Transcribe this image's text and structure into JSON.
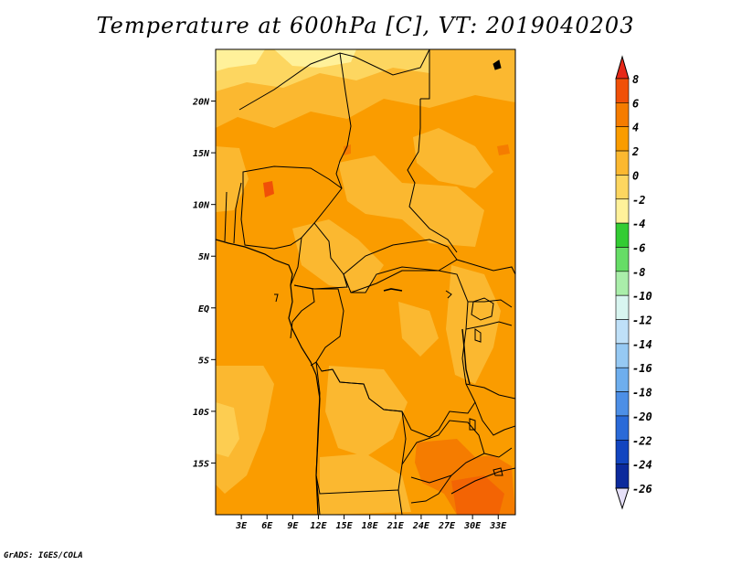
{
  "title": "Temperature at 600hPa [C], VT: 2019040203",
  "credit": "GrADS: IGES/COLA",
  "map": {
    "variable": "Temperature",
    "level": "600hPa",
    "units": "C",
    "valid_time": "2019040203",
    "region": "Central Africa",
    "lon_range": [
      0,
      35
    ],
    "lat_range": [
      -20,
      25
    ],
    "lon_ticks": [
      {
        "value": 3,
        "label": "3E"
      },
      {
        "value": 6,
        "label": "6E"
      },
      {
        "value": 9,
        "label": "9E"
      },
      {
        "value": 12,
        "label": "12E"
      },
      {
        "value": 15,
        "label": "15E"
      },
      {
        "value": 18,
        "label": "18E"
      },
      {
        "value": 21,
        "label": "21E"
      },
      {
        "value": 24,
        "label": "24E"
      },
      {
        "value": 27,
        "label": "27E"
      },
      {
        "value": 30,
        "label": "30E"
      },
      {
        "value": 33,
        "label": "33E"
      }
    ],
    "lat_ticks": [
      {
        "value": 20,
        "label": "20N"
      },
      {
        "value": 15,
        "label": "15N"
      },
      {
        "value": 10,
        "label": "10N"
      },
      {
        "value": 5,
        "label": "5N"
      },
      {
        "value": 0,
        "label": "EQ"
      },
      {
        "value": -5,
        "label": "5S"
      },
      {
        "value": -10,
        "label": "10S"
      },
      {
        "value": -15,
        "label": "15S"
      }
    ]
  },
  "colorbar": {
    "levels": [
      "8",
      "6",
      "4",
      "2",
      "0",
      "-2",
      "-4",
      "-6",
      "-8",
      "-10",
      "-12",
      "-14",
      "-16",
      "-18",
      "-20",
      "-22",
      "-24",
      "-26"
    ],
    "colors": [
      "#e62818",
      "#f05008",
      "#f57c00",
      "#fa9c00",
      "#fbb830",
      "#fdd660",
      "#fff19a",
      "#33cc33",
      "#66dd66",
      "#aaeeaa",
      "#d8f5f0",
      "#bfe0f8",
      "#96c9f3",
      "#6eaeee",
      "#4d8fe6",
      "#2a6ad8",
      "#1245c0",
      "#0c2a9c",
      "#0a1a78",
      "#000060"
    ],
    "top_color": "#e62818",
    "bottom_color": "#e6e0f8"
  }
}
